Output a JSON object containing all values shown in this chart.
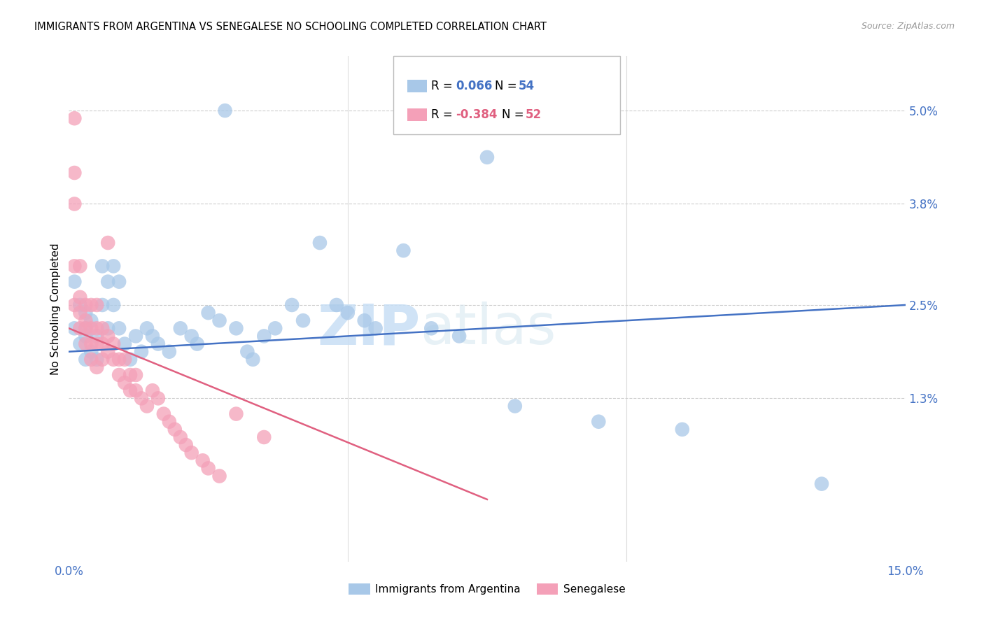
{
  "title": "IMMIGRANTS FROM ARGENTINA VS SENEGALESE NO SCHOOLING COMPLETED CORRELATION CHART",
  "source": "Source: ZipAtlas.com",
  "ylabel": "No Schooling Completed",
  "ytick_labels": [
    "5.0%",
    "3.8%",
    "2.5%",
    "1.3%"
  ],
  "ytick_values": [
    0.05,
    0.038,
    0.025,
    0.013
  ],
  "xmin": 0.0,
  "xmax": 0.15,
  "ymin": -0.008,
  "ymax": 0.057,
  "color_argentina": "#a8c8e8",
  "color_senegalese": "#f4a0b8",
  "color_line_argentina": "#4472c4",
  "color_line_senegalese": "#e06080",
  "color_axis_labels": "#4472c4",
  "watermark_zip": "ZIP",
  "watermark_atlas": "atlas",
  "argentina_x": [
    0.028,
    0.001,
    0.001,
    0.002,
    0.002,
    0.003,
    0.003,
    0.003,
    0.003,
    0.004,
    0.004,
    0.005,
    0.005,
    0.006,
    0.006,
    0.007,
    0.007,
    0.008,
    0.008,
    0.009,
    0.009,
    0.01,
    0.011,
    0.012,
    0.013,
    0.014,
    0.015,
    0.016,
    0.018,
    0.02,
    0.022,
    0.023,
    0.025,
    0.027,
    0.03,
    0.032,
    0.033,
    0.035,
    0.037,
    0.04,
    0.042,
    0.045,
    0.048,
    0.05,
    0.053,
    0.055,
    0.06,
    0.065,
    0.07,
    0.075,
    0.08,
    0.095,
    0.11,
    0.135
  ],
  "argentina_y": [
    0.05,
    0.028,
    0.022,
    0.025,
    0.02,
    0.024,
    0.022,
    0.021,
    0.018,
    0.023,
    0.019,
    0.021,
    0.018,
    0.03,
    0.025,
    0.028,
    0.022,
    0.03,
    0.025,
    0.028,
    0.022,
    0.02,
    0.018,
    0.021,
    0.019,
    0.022,
    0.021,
    0.02,
    0.019,
    0.022,
    0.021,
    0.02,
    0.024,
    0.023,
    0.022,
    0.019,
    0.018,
    0.021,
    0.022,
    0.025,
    0.023,
    0.033,
    0.025,
    0.024,
    0.023,
    0.022,
    0.032,
    0.022,
    0.021,
    0.044,
    0.012,
    0.01,
    0.009,
    0.002
  ],
  "senegalese_x": [
    0.001,
    0.001,
    0.001,
    0.001,
    0.001,
    0.002,
    0.002,
    0.002,
    0.002,
    0.003,
    0.003,
    0.003,
    0.003,
    0.004,
    0.004,
    0.004,
    0.004,
    0.005,
    0.005,
    0.005,
    0.005,
    0.006,
    0.006,
    0.006,
    0.007,
    0.007,
    0.007,
    0.008,
    0.008,
    0.009,
    0.009,
    0.01,
    0.01,
    0.011,
    0.011,
    0.012,
    0.012,
    0.013,
    0.014,
    0.015,
    0.016,
    0.017,
    0.018,
    0.019,
    0.02,
    0.021,
    0.022,
    0.024,
    0.025,
    0.027,
    0.03,
    0.035
  ],
  "senegalese_y": [
    0.049,
    0.042,
    0.038,
    0.03,
    0.025,
    0.03,
    0.026,
    0.024,
    0.022,
    0.025,
    0.023,
    0.022,
    0.02,
    0.025,
    0.022,
    0.02,
    0.018,
    0.025,
    0.022,
    0.02,
    0.017,
    0.022,
    0.02,
    0.018,
    0.033,
    0.021,
    0.019,
    0.02,
    0.018,
    0.018,
    0.016,
    0.018,
    0.015,
    0.016,
    0.014,
    0.016,
    0.014,
    0.013,
    0.012,
    0.014,
    0.013,
    0.011,
    0.01,
    0.009,
    0.008,
    0.007,
    0.006,
    0.005,
    0.004,
    0.003,
    0.011,
    0.008
  ],
  "arg_line_x": [
    0.0,
    0.15
  ],
  "arg_line_y": [
    0.019,
    0.025
  ],
  "sen_line_x": [
    0.0,
    0.075
  ],
  "sen_line_y": [
    0.022,
    0.0
  ]
}
